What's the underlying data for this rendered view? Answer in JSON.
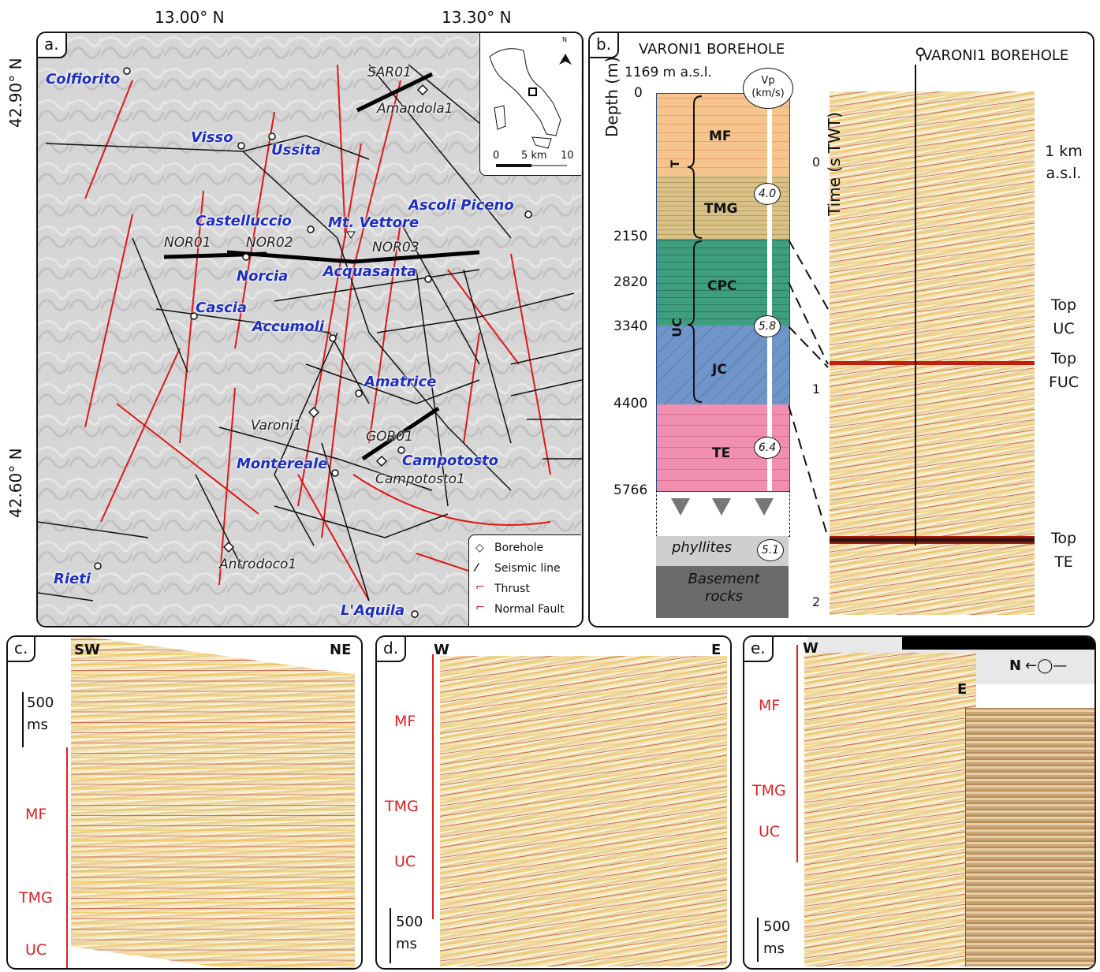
{
  "panel_a": {
    "tag": "a.",
    "coords": {
      "lon1": "13.00° N",
      "lon2": "13.30° N",
      "lat1": "42.90° N",
      "lat2": "42.60° N"
    },
    "towns": [
      "Colfiorito",
      "Visso",
      "Ussita",
      "Castelluccio",
      "Mt. Vettore",
      "Ascoli Piceno",
      "Norcia",
      "Acquasanta",
      "Cascia",
      "Accumoli",
      "Amatrice",
      "Montereale",
      "Campotosto",
      "Rieti",
      "L'Aquila"
    ],
    "boreholes": [
      "Amandola1",
      "Varoni1",
      "Campotosto1",
      "Antrodoco1"
    ],
    "lines": [
      "SAR01",
      "NOR01",
      "NOR02",
      "NOR03",
      "GOR01"
    ],
    "scale": {
      "zero": "0",
      "mid": "5 km",
      "max": "10"
    },
    "north": "N",
    "legend": [
      "Borehole",
      "Seismic line",
      "Thrust",
      "Normal Fault"
    ]
  },
  "panel_b": {
    "tag": "b.",
    "title": "VARONI1 BOREHOLE",
    "elevation": "1169 m a.s.l.",
    "vp_label": "Vp",
    "vp_unit": "(km/s)",
    "depth_axis": "Depth (m)",
    "depths": [
      "0",
      "2150",
      "2820",
      "3340",
      "4400",
      "5766"
    ],
    "units": [
      "MF",
      "TMG",
      "CPC",
      "JC",
      "TE"
    ],
    "group_t": "T",
    "group_uc": "UC",
    "velocities": [
      "4.0",
      "5.8",
      "6.4",
      "5.1"
    ],
    "phyllites": "phyllites",
    "basement": "Basement rocks",
    "seis_title": "VARONI1 BOREHOLE",
    "time_axis": "Time (s TWT)",
    "time_ticks": [
      "0",
      "1",
      "2"
    ],
    "datum": "1 km a.s.l.",
    "horizons": [
      "Top UC",
      "Top FUC",
      "Top TE"
    ]
  },
  "panel_c": {
    "tag": "c.",
    "left": "SW",
    "right": "NE",
    "scale": "500 ms",
    "units": [
      "MF",
      "TMG",
      "UC"
    ]
  },
  "panel_d": {
    "tag": "d.",
    "left": "W",
    "right": "E",
    "scale": "500 ms",
    "units": [
      "MF",
      "TMG",
      "UC"
    ]
  },
  "panel_e": {
    "tag": "e.",
    "left": "W",
    "right": "E",
    "north": "N",
    "scale": "500 ms",
    "units": [
      "MF",
      "TMG",
      "UC"
    ]
  }
}
